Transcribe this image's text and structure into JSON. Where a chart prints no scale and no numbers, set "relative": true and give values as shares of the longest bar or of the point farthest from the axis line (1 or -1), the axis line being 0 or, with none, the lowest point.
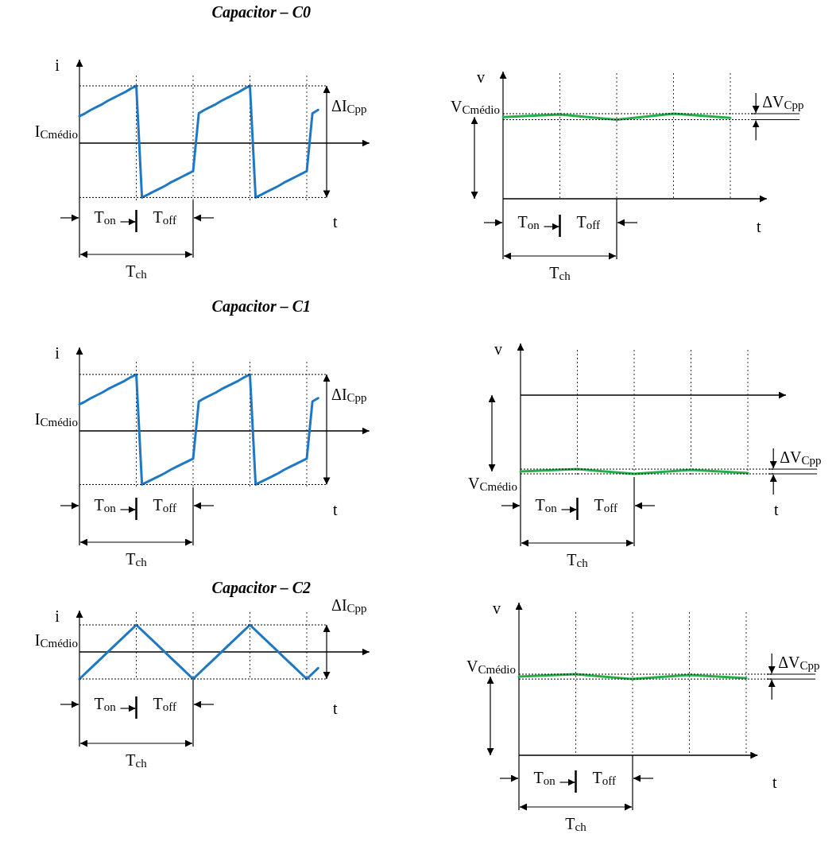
{
  "chart_data": [
    {
      "type": "line",
      "relative": true,
      "title": "Capacitor – C0",
      "xlabel": "t",
      "ylabel": "i",
      "grid": "x",
      "categories": [
        null,
        null,
        null,
        null,
        null,
        null,
        null,
        null,
        null,
        null,
        null,
        null,
        null,
        null,
        null,
        null,
        null,
        null,
        null,
        null,
        null,
        null,
        null,
        null,
        null,
        null,
        null,
        null,
        null,
        null,
        null,
        null,
        null,
        null,
        null,
        null,
        null,
        null,
        null,
        null,
        null,
        null,
        null
      ],
      "annotations": [
        "I$_{Cmédio}$",
        "ΔI$_{Cpp}$",
        "T$_{on}$",
        "T$_{off}$",
        "T$_{ch}$"
      ],
      "series": [
        {
          "color": "#1f78c4",
          "values": [
            0.47,
            0.52,
            0.58,
            0.63,
            0.68,
            0.74,
            0.79,
            0.84,
            0.89,
            0.95,
            1,
            -0.95,
            -0.9,
            -0.85,
            -0.8,
            -0.75,
            -0.69,
            -0.64,
            -0.59,
            -0.54,
            -0.49,
            0.52,
            0.58,
            0.63,
            0.68,
            0.74,
            0.79,
            0.84,
            0.89,
            0.95,
            1,
            -0.95,
            -0.9,
            -0.85,
            -0.8,
            -0.75,
            -0.69,
            -0.64,
            -0.59,
            -0.54,
            -0.49,
            0.52,
            0.58
          ]
        }
      ]
    },
    {
      "type": "line",
      "relative": true,
      "xlabel": "t",
      "ylabel": "v",
      "grid": "x",
      "categories": [
        null,
        null,
        null,
        null,
        null
      ],
      "annotations": [
        "V$_{Cmédio}$",
        "ΔV$_{Cpp}$",
        "T$_{on}$",
        "T$_{off}$",
        "T$_{ch}$"
      ],
      "series": [
        {
          "color": "#22b04a",
          "values": [
            0.96,
            0.99,
            0.93,
            1,
            0.95
          ]
        }
      ]
    },
    {
      "type": "line",
      "relative": true,
      "title": "Capacitor – C1",
      "xlabel": "t",
      "ylabel": "i",
      "grid": "x",
      "categories": [
        null,
        null,
        null,
        null,
        null,
        null,
        null,
        null,
        null,
        null,
        null,
        null,
        null,
        null,
        null,
        null,
        null,
        null,
        null,
        null,
        null,
        null,
        null,
        null,
        null,
        null,
        null,
        null,
        null,
        null,
        null,
        null,
        null,
        null,
        null,
        null,
        null,
        null,
        null,
        null,
        null,
        null,
        null
      ],
      "annotations": [
        "I$_{Cmédio}$",
        "ΔI$_{Cpp}$",
        "T$_{on}$",
        "T$_{off}$",
        "T$_{ch}$"
      ],
      "series": [
        {
          "color": "#1f78c4",
          "values": [
            0.47,
            0.52,
            0.58,
            0.63,
            0.68,
            0.74,
            0.79,
            0.84,
            0.89,
            0.95,
            1,
            -0.95,
            -0.9,
            -0.85,
            -0.8,
            -0.75,
            -0.69,
            -0.64,
            -0.59,
            -0.54,
            -0.49,
            0.52,
            0.58,
            0.63,
            0.68,
            0.74,
            0.79,
            0.84,
            0.89,
            0.95,
            1,
            -0.95,
            -0.9,
            -0.85,
            -0.8,
            -0.75,
            -0.69,
            -0.64,
            -0.59,
            -0.54,
            -0.49,
            0.52,
            0.58
          ]
        }
      ]
    },
    {
      "type": "line",
      "relative": true,
      "xlabel": "t",
      "ylabel": "v",
      "grid": "x",
      "categories": [
        null,
        null,
        null,
        null,
        null
      ],
      "annotations": [
        "V$_{Cmédio}$",
        "ΔV$_{Cpp}$",
        "T$_{on}$",
        "T$_{off}$",
        "T$_{ch}$"
      ],
      "series": [
        {
          "color": "#22b04a",
          "values": [
            -0.97,
            -0.94,
            -1,
            -0.95,
            -0.99
          ]
        }
      ]
    },
    {
      "type": "line",
      "relative": true,
      "title": "Capacitor – C2",
      "xlabel": "t",
      "ylabel": "i",
      "grid": "x",
      "categories": [
        null,
        null,
        null,
        null,
        null,
        null,
        null,
        null,
        null,
        null,
        null,
        null,
        null,
        null,
        null,
        null,
        null,
        null,
        null,
        null,
        null,
        null
      ],
      "annotations": [
        "I$_{Cmédio}$",
        "ΔI$_{Cpp}$",
        "T$_{on}$",
        "T$_{off}$",
        "T$_{ch}$"
      ],
      "series": [
        {
          "color": "#1f78c4",
          "values": [
            -1,
            -0.6,
            -0.2,
            0.2,
            0.6,
            1,
            0.6,
            0.2,
            -0.2,
            -0.6,
            -1,
            -0.6,
            -0.2,
            0.2,
            0.6,
            1,
            0.6,
            0.2,
            -0.2,
            -0.6,
            -1,
            -0.6
          ]
        }
      ]
    },
    {
      "type": "line",
      "relative": true,
      "xlabel": "t",
      "ylabel": "v",
      "grid": "x",
      "categories": [
        null,
        null,
        null,
        null,
        null
      ],
      "annotations": [
        "V$_{Cmédio}$",
        "ΔV$_{Cpp}$",
        "T$_{on}$",
        "T$_{off}$",
        "T$_{ch}$"
      ],
      "series": [
        {
          "color": "#22b04a",
          "values": [
            0.97,
            1,
            0.94,
            0.99,
            0.95
          ]
        }
      ]
    }
  ]
}
